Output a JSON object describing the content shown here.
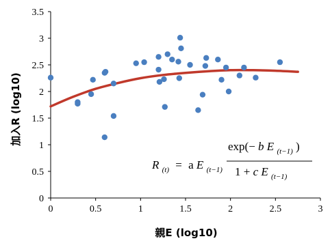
{
  "chart_data": {
    "type": "scatter",
    "xlabel": "親E (log10)",
    "ylabel": "加入R (log10)",
    "xlim": [
      0,
      3
    ],
    "ylim": [
      0,
      3.5
    ],
    "x_ticks": [
      "0",
      "0.5",
      "1",
      "1.5",
      "2",
      "2.5",
      "3"
    ],
    "y_ticks": [
      "0",
      "0.5",
      "1",
      "1.5",
      "2",
      "2.5",
      "3",
      "3.5"
    ],
    "grid": false,
    "marker_color": "#4a7fc0",
    "curve_color": "#c0392b",
    "points": [
      {
        "x": 0.0,
        "y": 2.26
      },
      {
        "x": 0.3,
        "y": 1.8
      },
      {
        "x": 0.3,
        "y": 1.77
      },
      {
        "x": 0.45,
        "y": 1.95
      },
      {
        "x": 0.47,
        "y": 2.22
      },
      {
        "x": 0.6,
        "y": 1.14
      },
      {
        "x": 0.6,
        "y": 2.35
      },
      {
        "x": 0.61,
        "y": 2.37
      },
      {
        "x": 0.7,
        "y": 1.54
      },
      {
        "x": 0.7,
        "y": 2.15
      },
      {
        "x": 0.95,
        "y": 2.53
      },
      {
        "x": 1.04,
        "y": 2.55
      },
      {
        "x": 1.2,
        "y": 2.65
      },
      {
        "x": 1.2,
        "y": 2.41
      },
      {
        "x": 1.21,
        "y": 2.18
      },
      {
        "x": 1.26,
        "y": 2.23
      },
      {
        "x": 1.27,
        "y": 1.71
      },
      {
        "x": 1.3,
        "y": 2.7
      },
      {
        "x": 1.35,
        "y": 2.6
      },
      {
        "x": 1.42,
        "y": 2.56
      },
      {
        "x": 1.43,
        "y": 2.25
      },
      {
        "x": 1.44,
        "y": 3.01
      },
      {
        "x": 1.45,
        "y": 2.81
      },
      {
        "x": 1.55,
        "y": 2.5
      },
      {
        "x": 1.64,
        "y": 1.65
      },
      {
        "x": 1.69,
        "y": 1.94
      },
      {
        "x": 1.72,
        "y": 2.48
      },
      {
        "x": 1.73,
        "y": 2.63
      },
      {
        "x": 1.86,
        "y": 2.6
      },
      {
        "x": 1.9,
        "y": 2.22
      },
      {
        "x": 1.95,
        "y": 2.45
      },
      {
        "x": 1.98,
        "y": 2.0
      },
      {
        "x": 2.1,
        "y": 2.3
      },
      {
        "x": 2.15,
        "y": 2.45
      },
      {
        "x": 2.28,
        "y": 2.26
      },
      {
        "x": 2.55,
        "y": 2.55
      }
    ],
    "fit_curve": {
      "x": [
        0,
        0.25,
        0.5,
        0.75,
        1.0,
        1.25,
        1.5,
        1.75,
        2.0,
        2.25,
        2.5,
        2.75
      ],
      "y": [
        1.72,
        1.9,
        2.05,
        2.16,
        2.25,
        2.31,
        2.35,
        2.38,
        2.4,
        2.4,
        2.39,
        2.37
      ]
    },
    "equation": {
      "lhs": "R",
      "lhs_sub": "(t)",
      "equals": "=",
      "coef": "a",
      "E": "E",
      "sub": "(t−1)",
      "num_prefix": "exp(−",
      "num_b": "b",
      "num_suffix": ")",
      "den_prefix": "1 + ",
      "den_c": "c"
    }
  }
}
